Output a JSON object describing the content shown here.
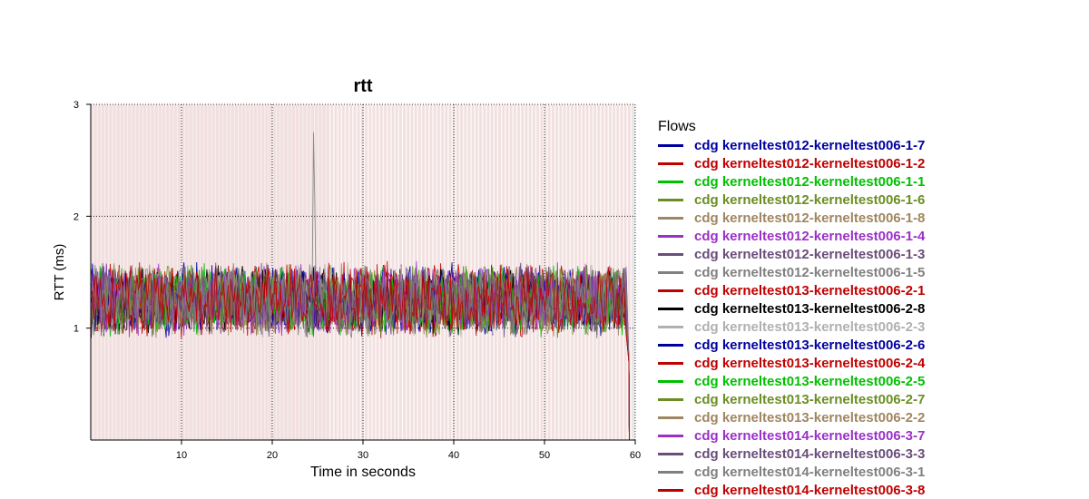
{
  "chart_data": {
    "type": "line",
    "title": "rtt",
    "xlabel": "Time in seconds",
    "ylabel": "RTT (ms)",
    "xlim": [
      0,
      60
    ],
    "ylim": [
      0,
      3
    ],
    "xticks": [
      "10",
      "20",
      "30",
      "40",
      "50",
      "60"
    ],
    "yticks": [
      "1",
      "2",
      "3"
    ],
    "grid": true,
    "legend_position": "right",
    "legend_title": "Flows",
    "series": [
      {
        "name": "cdg kerneltest012-kerneltest006-1-7",
        "color": "#0000a0"
      },
      {
        "name": "cdg kerneltest012-kerneltest006-1-2",
        "color": "#c00000"
      },
      {
        "name": "cdg kerneltest012-kerneltest006-1-1",
        "color": "#00c000"
      },
      {
        "name": "cdg kerneltest012-kerneltest006-1-6",
        "color": "#6b8e23"
      },
      {
        "name": "cdg kerneltest012-kerneltest006-1-8",
        "color": "#a08660"
      },
      {
        "name": "cdg kerneltest012-kerneltest006-1-4",
        "color": "#9b30c8"
      },
      {
        "name": "cdg kerneltest012-kerneltest006-1-3",
        "color": "#6a4d7a"
      },
      {
        "name": "cdg kerneltest012-kerneltest006-1-5",
        "color": "#808080"
      },
      {
        "name": "cdg kerneltest013-kerneltest006-2-1",
        "color": "#c00000"
      },
      {
        "name": "cdg kerneltest013-kerneltest006-2-8",
        "color": "#000000"
      },
      {
        "name": "cdg kerneltest013-kerneltest006-2-3",
        "color": "#b0b0b0"
      },
      {
        "name": "cdg kerneltest013-kerneltest006-2-6",
        "color": "#0000a0"
      },
      {
        "name": "cdg kerneltest013-kerneltest006-2-4",
        "color": "#c00000"
      },
      {
        "name": "cdg kerneltest013-kerneltest006-2-5",
        "color": "#00c000"
      },
      {
        "name": "cdg kerneltest013-kerneltest006-2-7",
        "color": "#6b8e23"
      },
      {
        "name": "cdg kerneltest013-kerneltest006-2-2",
        "color": "#a08660"
      },
      {
        "name": "cdg kerneltest014-kerneltest006-3-7",
        "color": "#9b30c8"
      },
      {
        "name": "cdg kerneltest014-kerneltest006-3-3",
        "color": "#6a4d7a"
      },
      {
        "name": "cdg kerneltest014-kerneltest006-3-1",
        "color": "#808080"
      },
      {
        "name": "cdg kerneltest014-kerneltest006-3-8",
        "color": "#c00000"
      }
    ],
    "typical_range": [
      0.9,
      1.6
    ],
    "spike": {
      "x": 24.6,
      "y": 2.75
    },
    "end_drop_x": 59
  }
}
